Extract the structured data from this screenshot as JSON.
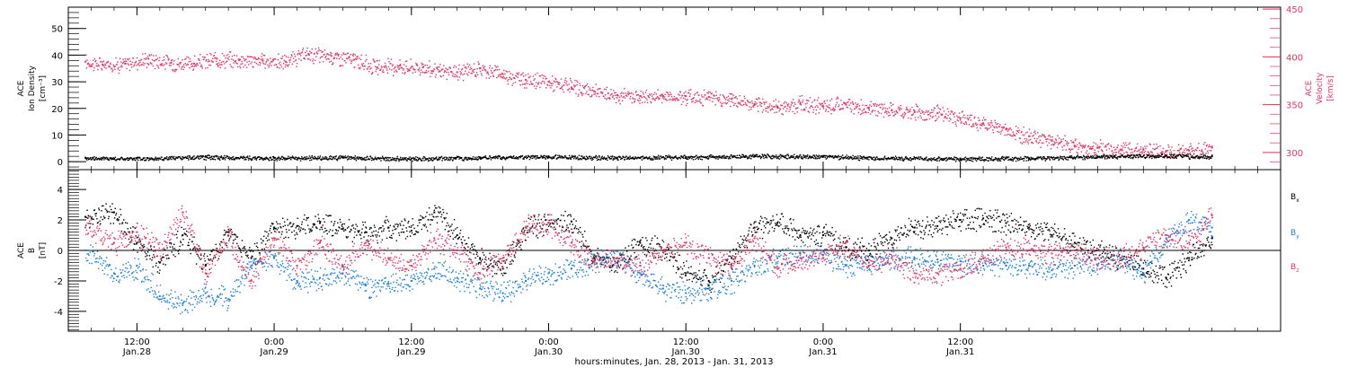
{
  "chart_data": [
    {
      "type": "scatter",
      "panel": "top",
      "left_axis": {
        "label_lines": [
          "ACE",
          "Ion Density",
          "[cm⁻³]"
        ],
        "ylim": [
          -3,
          58
        ],
        "ticks": [
          0,
          10,
          20,
          30,
          40,
          50
        ],
        "color": "#000000"
      },
      "right_axis": {
        "label_lines": [
          "ACE",
          "Velocity",
          "[km/s]"
        ],
        "ylim": [
          282,
          452
        ],
        "ticks": [
          300,
          350,
          400,
          450
        ],
        "color": "#e8335e"
      },
      "series": [
        {
          "axis": "right",
          "color": "#e8335e",
          "points": [
            [
              7.5,
              395
            ],
            [
              9,
              392
            ],
            [
              11,
              393
            ],
            [
              13,
              398
            ],
            [
              15,
              394
            ],
            [
              17,
              393
            ],
            [
              19,
              398
            ],
            [
              21,
              397
            ],
            [
              23,
              396
            ],
            [
              25,
              395
            ],
            [
              27,
              403
            ],
            [
              29,
              401
            ],
            [
              31,
              397
            ],
            [
              33,
              389
            ],
            [
              35,
              391
            ],
            [
              37,
              389
            ],
            [
              38.5,
              385
            ],
            [
              40,
              384
            ],
            [
              42,
              388
            ],
            [
              44,
              382
            ],
            [
              46,
              376
            ],
            [
              48,
              374
            ],
            [
              50,
              368
            ],
            [
              52,
              364
            ],
            [
              54,
              360
            ],
            [
              56,
              359
            ],
            [
              58,
              359
            ],
            [
              60,
              359
            ],
            [
              62,
              358
            ],
            [
              64,
              356
            ],
            [
              66,
              350
            ],
            [
              68,
              348
            ],
            [
              70,
              351
            ],
            [
              72,
              348
            ],
            [
              74,
              350
            ],
            [
              76,
              347
            ],
            [
              78,
              344
            ],
            [
              80,
              342
            ],
            [
              82,
              341
            ],
            [
              84,
              336
            ],
            [
              86,
              330
            ],
            [
              88,
              324
            ],
            [
              90,
              317
            ],
            [
              92,
              312
            ],
            [
              94,
              307
            ],
            [
              96,
              305
            ],
            [
              98,
              303
            ],
            [
              100,
              303
            ],
            [
              102,
              301
            ],
            [
              104,
              302
            ],
            [
              106,
              305
            ]
          ]
        },
        {
          "axis": "left",
          "color": "#000000",
          "points": [
            [
              7.5,
              1.5
            ],
            [
              12,
              1.2
            ],
            [
              18,
              1.8
            ],
            [
              24,
              1.4
            ],
            [
              30,
              1.6
            ],
            [
              36,
              1.2
            ],
            [
              42,
              1.6
            ],
            [
              48,
              2.0
            ],
            [
              54,
              1.5
            ],
            [
              60,
              1.8
            ],
            [
              66,
              2.2
            ],
            [
              72,
              2.0
            ],
            [
              78,
              1.4
            ],
            [
              84,
              1.2
            ],
            [
              90,
              1.3
            ],
            [
              96,
              1.9
            ],
            [
              102,
              2.2
            ],
            [
              106,
              2.0
            ]
          ]
        }
      ]
    },
    {
      "type": "scatter",
      "panel": "bottom",
      "left_axis": {
        "label_lines": [
          "ACE",
          "B",
          "[nT]"
        ],
        "ylim": [
          -5.3,
          5.3
        ],
        "ticks": [
          -4,
          -2,
          0,
          2,
          4
        ],
        "color": "#000000"
      },
      "zero_line": 0,
      "legend": [
        {
          "label": "B",
          "subscript": "x",
          "color": "#000000"
        },
        {
          "label": "B",
          "subscript": "y",
          "color": "#1a7ee0"
        },
        {
          "label": "B",
          "subscript": "z",
          "color": "#e8335e"
        }
      ],
      "series": [
        {
          "name": "Bx",
          "color": "#000000",
          "points": [
            [
              7.5,
              2.2
            ],
            [
              10,
              2.5
            ],
            [
              12,
              0.5
            ],
            [
              14,
              -0.8
            ],
            [
              16,
              1.0
            ],
            [
              18,
              -1.0
            ],
            [
              20,
              1.2
            ],
            [
              22,
              -0.5
            ],
            [
              24,
              1.5
            ],
            [
              26,
              1.6
            ],
            [
              28,
              1.8
            ],
            [
              30,
              1.4
            ],
            [
              32,
              1.2
            ],
            [
              34,
              1.5
            ],
            [
              36,
              1.3
            ],
            [
              38,
              2.5
            ],
            [
              40,
              1.0
            ],
            [
              42,
              -0.5
            ],
            [
              44,
              -1.2
            ],
            [
              46,
              1.5
            ],
            [
              48,
              1.8
            ],
            [
              50,
              1.9
            ],
            [
              52,
              -0.5
            ],
            [
              54,
              -0.8
            ],
            [
              56,
              0.5
            ],
            [
              58,
              0.0
            ],
            [
              60,
              -1.5
            ],
            [
              62,
              -2.0
            ],
            [
              64,
              -0.5
            ],
            [
              66,
              1.5
            ],
            [
              68,
              1.8
            ],
            [
              70,
              1.0
            ],
            [
              72,
              1.0
            ],
            [
              74,
              0.2
            ],
            [
              76,
              0.0
            ],
            [
              78,
              0.8
            ],
            [
              80,
              1.5
            ],
            [
              82,
              1.6
            ],
            [
              84,
              2.0
            ],
            [
              86,
              2.1
            ],
            [
              88,
              1.8
            ],
            [
              90,
              1.5
            ],
            [
              92,
              1.0
            ],
            [
              94,
              0.5
            ],
            [
              96,
              0.0
            ],
            [
              98,
              -0.5
            ],
            [
              100,
              -1.2
            ],
            [
              102,
              -1.8
            ],
            [
              104,
              -0.5
            ],
            [
              106,
              0.8
            ]
          ]
        },
        {
          "name": "By",
          "color": "#1a7ee0",
          "points": [
            [
              7.5,
              0.0
            ],
            [
              10,
              -1.5
            ],
            [
              12,
              -1.0
            ],
            [
              14,
              -3.0
            ],
            [
              16,
              -3.5
            ],
            [
              18,
              -2.8
            ],
            [
              20,
              -3.2
            ],
            [
              22,
              -1.0
            ],
            [
              24,
              -0.5
            ],
            [
              26,
              -2.0
            ],
            [
              28,
              -1.8
            ],
            [
              30,
              -1.5
            ],
            [
              32,
              -2.3
            ],
            [
              34,
              -2.2
            ],
            [
              36,
              -2.0
            ],
            [
              38,
              -1.2
            ],
            [
              40,
              -1.8
            ],
            [
              42,
              -2.5
            ],
            [
              44,
              -2.8
            ],
            [
              46,
              -2.0
            ],
            [
              48,
              -1.5
            ],
            [
              50,
              -1.2
            ],
            [
              52,
              -0.8
            ],
            [
              54,
              -0.5
            ],
            [
              56,
              -1.5
            ],
            [
              58,
              -2.5
            ],
            [
              60,
              -2.8
            ],
            [
              62,
              -2.5
            ],
            [
              64,
              -2.0
            ],
            [
              66,
              -1.0
            ],
            [
              68,
              -0.5
            ],
            [
              70,
              -0.2
            ],
            [
              72,
              -0.3
            ],
            [
              74,
              -1.0
            ],
            [
              76,
              -0.8
            ],
            [
              78,
              -0.5
            ],
            [
              80,
              -0.5
            ],
            [
              82,
              -0.6
            ],
            [
              84,
              -0.7
            ],
            [
              86,
              -1.0
            ],
            [
              88,
              -1.0
            ],
            [
              90,
              -1.0
            ],
            [
              92,
              -1.3
            ],
            [
              94,
              -1.0
            ],
            [
              96,
              -1.0
            ],
            [
              98,
              -0.5
            ],
            [
              100,
              -1.5
            ],
            [
              102,
              0.8
            ],
            [
              104,
              2.0
            ],
            [
              106,
              1.5
            ]
          ]
        },
        {
          "name": "Bz",
          "color": "#e8335e",
          "points": [
            [
              7.5,
              1.5
            ],
            [
              10,
              0.5
            ],
            [
              12,
              1.2
            ],
            [
              14,
              0.0
            ],
            [
              16,
              2.5
            ],
            [
              18,
              -1.5
            ],
            [
              20,
              1.0
            ],
            [
              22,
              -2.0
            ],
            [
              24,
              0.8
            ],
            [
              26,
              -1.0
            ],
            [
              28,
              0.5
            ],
            [
              30,
              -1.0
            ],
            [
              32,
              0.5
            ],
            [
              34,
              -0.5
            ],
            [
              36,
              -1.0
            ],
            [
              38,
              0.8
            ],
            [
              40,
              0.0
            ],
            [
              42,
              -1.5
            ],
            [
              44,
              -0.5
            ],
            [
              46,
              1.5
            ],
            [
              48,
              1.8
            ],
            [
              50,
              0.5
            ],
            [
              52,
              -0.8
            ],
            [
              54,
              -0.5
            ],
            [
              56,
              -1.0
            ],
            [
              58,
              0.0
            ],
            [
              60,
              0.5
            ],
            [
              62,
              -0.5
            ],
            [
              64,
              -1.0
            ],
            [
              66,
              0.8
            ],
            [
              68,
              -1.2
            ],
            [
              70,
              -0.5
            ],
            [
              72,
              -0.5
            ],
            [
              74,
              0.5
            ],
            [
              76,
              -1.0
            ],
            [
              78,
              -0.5
            ],
            [
              80,
              -1.5
            ],
            [
              82,
              -1.5
            ],
            [
              84,
              -1.2
            ],
            [
              86,
              -0.5
            ],
            [
              88,
              0.2
            ],
            [
              90,
              0.0
            ],
            [
              92,
              -0.2
            ],
            [
              94,
              0.0
            ],
            [
              96,
              -0.5
            ],
            [
              98,
              -0.5
            ],
            [
              100,
              0.2
            ],
            [
              102,
              1.0
            ],
            [
              104,
              0.5
            ],
            [
              106,
              2.3
            ]
          ]
        }
      ]
    }
  ],
  "x_axis": {
    "xlim": [
      6,
      112
    ],
    "ticks": [
      {
        "hours": 12,
        "line1": "12:00",
        "line2": "Jan.28"
      },
      {
        "hours": 24,
        "line1": "0:00",
        "line2": "Jan.29"
      },
      {
        "hours": 36,
        "line1": "12:00",
        "line2": "Jan.29"
      },
      {
        "hours": 48,
        "line1": "0:00",
        "line2": "Jan.30"
      },
      {
        "hours": 60,
        "line1": "12:00",
        "line2": "Jan.30"
      },
      {
        "hours": 72,
        "line1": "0:00",
        "line2": "Jan.31"
      },
      {
        "hours": 84,
        "line1": "12:00",
        "line2": "Jan.31"
      }
    ],
    "title": "hours:minutes, Jan. 28, 2013 - Jan. 31, 2013"
  }
}
